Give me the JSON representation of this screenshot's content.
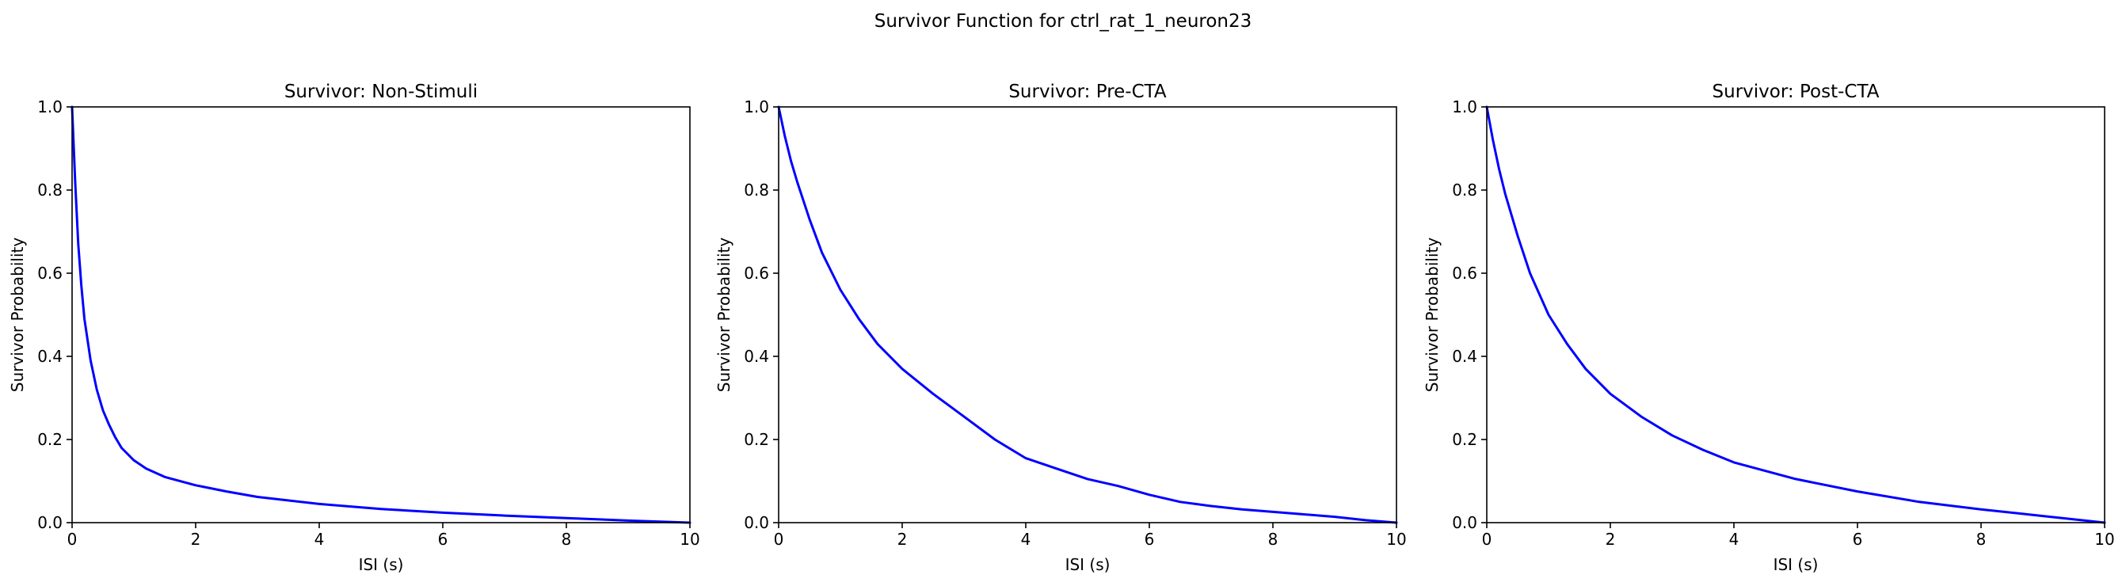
{
  "figure": {
    "suptitle": "Survivor Function for ctrl_rat_1_neuron23"
  },
  "style": {
    "line_color": "#0000ff",
    "axis_color": "#000000",
    "background": "#ffffff"
  },
  "chart_data": [
    {
      "type": "line",
      "title": "Survivor: Non-Stimuli",
      "xlabel": "ISI (s)",
      "ylabel": "Survivor Probability",
      "xlim": [
        0,
        10
      ],
      "ylim": [
        0,
        1
      ],
      "xticks": [
        0,
        2,
        4,
        6,
        8,
        10
      ],
      "yticks": [
        0.0,
        0.2,
        0.4,
        0.6,
        0.8,
        1.0
      ],
      "xtick_labels": [
        "0",
        "2",
        "4",
        "6",
        "8",
        "10"
      ],
      "ytick_labels": [
        "0.0",
        "0.2",
        "0.4",
        "0.6",
        "0.8",
        "1.0"
      ],
      "grid": false,
      "series": [
        {
          "color": "#0000ff",
          "x": [
            0,
            0.05,
            0.1,
            0.15,
            0.2,
            0.3,
            0.4,
            0.5,
            0.6,
            0.7,
            0.8,
            1.0,
            1.2,
            1.5,
            2.0,
            2.5,
            3.0,
            4.0,
            5.0,
            6.0,
            7.0,
            8.0,
            9.0,
            10.0
          ],
          "y": [
            1.0,
            0.82,
            0.67,
            0.57,
            0.49,
            0.39,
            0.32,
            0.27,
            0.235,
            0.205,
            0.18,
            0.15,
            0.13,
            0.11,
            0.09,
            0.075,
            0.062,
            0.045,
            0.033,
            0.024,
            0.017,
            0.011,
            0.005,
            0.0
          ]
        }
      ]
    },
    {
      "type": "line",
      "title": "Survivor: Pre-CTA",
      "xlabel": "ISI (s)",
      "ylabel": "Survivor Probability",
      "xlim": [
        0,
        10
      ],
      "ylim": [
        0,
        1
      ],
      "xticks": [
        0,
        2,
        4,
        6,
        8,
        10
      ],
      "yticks": [
        0.0,
        0.2,
        0.4,
        0.6,
        0.8,
        1.0
      ],
      "xtick_labels": [
        "0",
        "2",
        "4",
        "6",
        "8",
        "10"
      ],
      "ytick_labels": [
        "0.0",
        "0.2",
        "0.4",
        "0.6",
        "0.8",
        "1.0"
      ],
      "grid": false,
      "series": [
        {
          "color": "#0000ff",
          "x": [
            0,
            0.1,
            0.2,
            0.3,
            0.5,
            0.7,
            1.0,
            1.3,
            1.6,
            2.0,
            2.5,
            3.0,
            3.5,
            4.0,
            4.5,
            5.0,
            5.5,
            6.0,
            6.5,
            7.0,
            7.5,
            8.0,
            8.5,
            9.0,
            9.5,
            10.0
          ],
          "y": [
            1.0,
            0.93,
            0.87,
            0.82,
            0.73,
            0.65,
            0.56,
            0.49,
            0.43,
            0.37,
            0.31,
            0.255,
            0.2,
            0.155,
            0.13,
            0.105,
            0.088,
            0.067,
            0.05,
            0.04,
            0.032,
            0.026,
            0.02,
            0.014,
            0.006,
            0.0
          ]
        }
      ]
    },
    {
      "type": "line",
      "title": "Survivor: Post-CTA",
      "xlabel": "ISI (s)",
      "ylabel": "Survivor Probability",
      "xlim": [
        0,
        10
      ],
      "ylim": [
        0,
        1
      ],
      "xticks": [
        0,
        2,
        4,
        6,
        8,
        10
      ],
      "yticks": [
        0.0,
        0.2,
        0.4,
        0.6,
        0.8,
        1.0
      ],
      "xtick_labels": [
        "0",
        "2",
        "4",
        "6",
        "8",
        "10"
      ],
      "ytick_labels": [
        "0.0",
        "0.2",
        "0.4",
        "0.6",
        "0.8",
        "1.0"
      ],
      "grid": false,
      "series": [
        {
          "color": "#0000ff",
          "x": [
            0,
            0.1,
            0.2,
            0.3,
            0.5,
            0.7,
            1.0,
            1.3,
            1.6,
            2.0,
            2.5,
            3.0,
            3.5,
            4.0,
            5.0,
            6.0,
            7.0,
            8.0,
            9.0,
            10.0
          ],
          "y": [
            1.0,
            0.92,
            0.85,
            0.79,
            0.69,
            0.6,
            0.5,
            0.43,
            0.37,
            0.31,
            0.255,
            0.21,
            0.175,
            0.145,
            0.105,
            0.075,
            0.05,
            0.032,
            0.016,
            0.0
          ]
        }
      ]
    }
  ]
}
